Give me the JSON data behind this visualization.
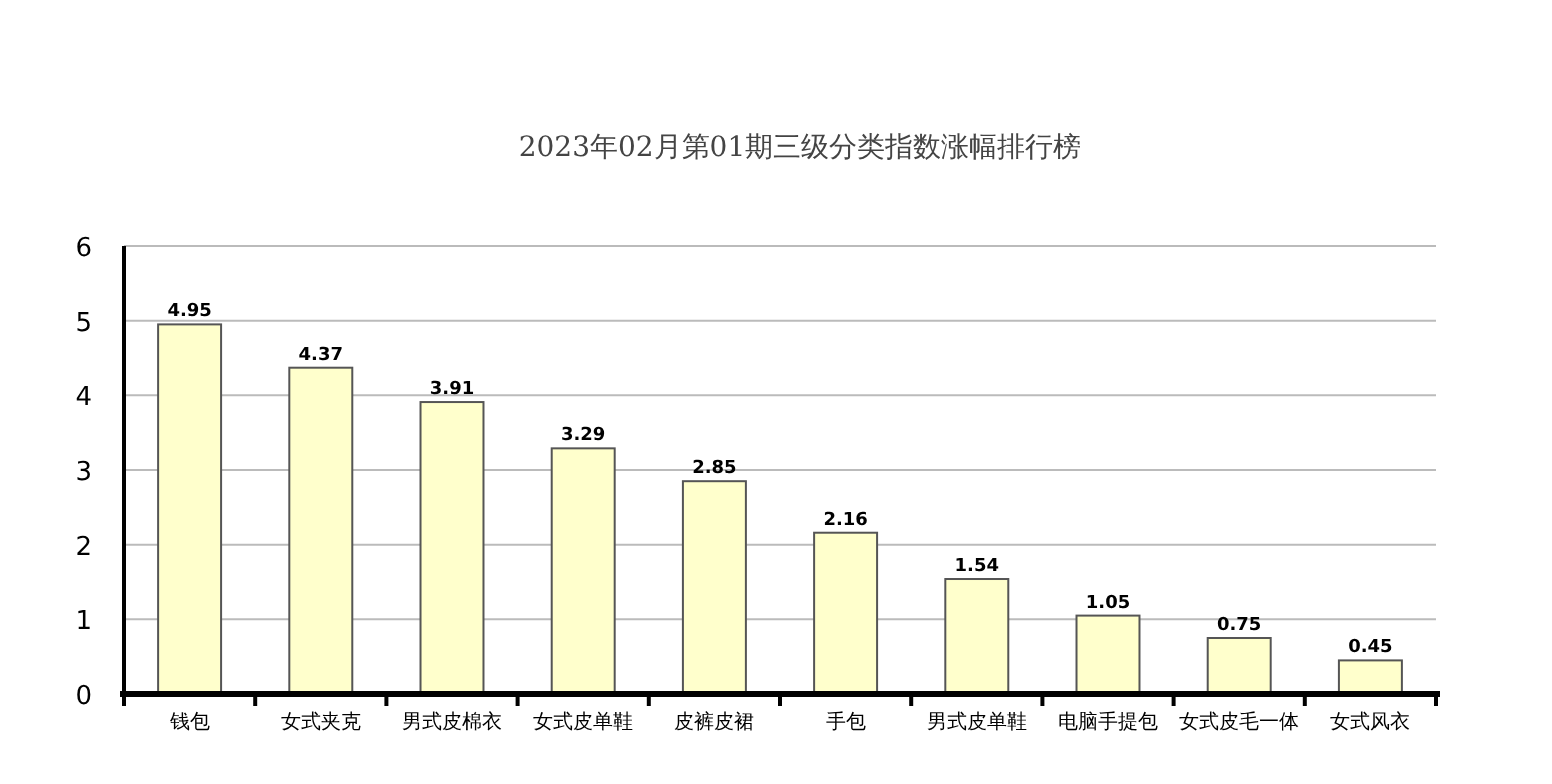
{
  "chart_data": {
    "type": "bar",
    "title": "2023年02月第01期三级分类指数涨幅排行榜",
    "categories": [
      "钱包",
      "女式夹克",
      "男式皮棉衣",
      "女式皮单鞋",
      "皮裤皮裙",
      "手包",
      "男式皮单鞋",
      "电脑手提包",
      "女式皮毛一体",
      "女式风衣"
    ],
    "values": [
      4.95,
      4.37,
      3.91,
      3.29,
      2.85,
      2.16,
      1.54,
      1.05,
      0.75,
      0.45
    ],
    "color": "#ffffcc",
    "ylim": [
      0,
      6
    ],
    "yticks": [
      0,
      1,
      2,
      3,
      4,
      5,
      6
    ],
    "grid": "y",
    "data_labels": true
  }
}
